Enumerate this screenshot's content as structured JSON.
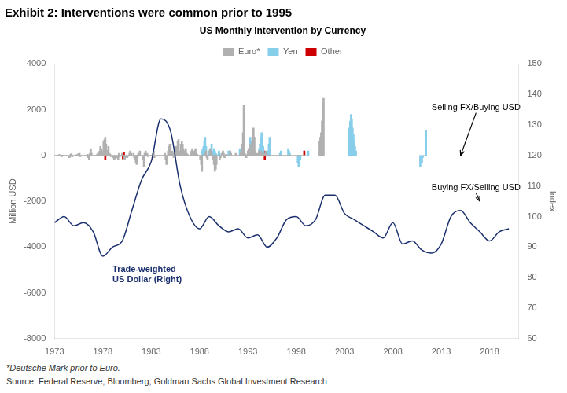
{
  "chart_data": {
    "type": "bar",
    "title": "Exhibit 2: Interventions were common prior to 1995",
    "subtitle": "US Monthly Intervention by Currency",
    "ylabel": "Million USD",
    "y2label": "Index",
    "xlim": [
      1973,
      2021
    ],
    "xticks": [
      1973,
      1978,
      1983,
      1988,
      1993,
      1998,
      2003,
      2008,
      2013,
      2018
    ],
    "ylim": [
      -8000,
      4000
    ],
    "yticks": [
      -8000,
      -6000,
      -4000,
      -2000,
      0,
      2000,
      4000
    ],
    "y2lim": [
      60,
      150
    ],
    "y2ticks": [
      60,
      70,
      80,
      90,
      100,
      110,
      120,
      130,
      140,
      150
    ],
    "grid": false,
    "legend": "top",
    "series": [
      {
        "name": "Euro*",
        "color": "#b0b0b0",
        "x": [
          1973.0,
          1973.08,
          1973.17,
          1973.25,
          1973.33,
          1973.42,
          1973.5,
          1973.58,
          1973.67,
          1973.75,
          1973.83,
          1973.92,
          1974.0,
          1974.08,
          1974.17,
          1974.25,
          1974.33,
          1974.42,
          1974.5,
          1974.58,
          1974.67,
          1974.75,
          1974.83,
          1974.92,
          1975.0,
          1975.08,
          1975.17,
          1975.25,
          1975.33,
          1975.42,
          1975.5,
          1975.58,
          1975.67,
          1975.75,
          1975.83,
          1975.92,
          1976.0,
          1976.08,
          1976.17,
          1976.25,
          1976.33,
          1976.42,
          1976.5,
          1976.58,
          1976.67,
          1976.75,
          1976.83,
          1976.92,
          1977.0,
          1977.08,
          1977.17,
          1977.25,
          1977.33,
          1977.42,
          1977.5,
          1977.58,
          1977.67,
          1977.75,
          1977.83,
          1977.92,
          1978.0,
          1978.08,
          1978.17,
          1978.25,
          1978.33,
          1978.42,
          1978.5,
          1978.58,
          1978.67,
          1978.75,
          1978.83,
          1978.92,
          1979.0,
          1979.08,
          1979.17,
          1979.25,
          1979.33,
          1979.42,
          1979.5,
          1979.58,
          1979.67,
          1979.75,
          1979.83,
          1979.92,
          1980.0,
          1980.08,
          1980.17,
          1980.25,
          1980.33,
          1980.42,
          1980.5,
          1980.58,
          1980.67,
          1980.75,
          1980.83,
          1980.92,
          1981.0,
          1981.08,
          1981.17,
          1981.25,
          1981.33,
          1981.42,
          1981.5,
          1981.58,
          1981.67,
          1981.75,
          1981.83,
          1981.92,
          1982.0,
          1982.08,
          1982.17,
          1982.25,
          1982.33,
          1982.42,
          1982.5,
          1982.58,
          1982.67,
          1982.75,
          1982.83,
          1982.92,
          1983.0,
          1983.08,
          1983.17,
          1983.25,
          1983.33,
          1983.42,
          1983.5,
          1983.58,
          1983.67,
          1983.75,
          1983.83,
          1983.92,
          1984.0,
          1984.08,
          1984.17,
          1984.25,
          1984.33,
          1984.42,
          1984.5,
          1984.58,
          1984.67,
          1984.75,
          1984.83,
          1984.92,
          1985.0,
          1985.08,
          1985.17,
          1985.25,
          1985.33,
          1985.42,
          1985.5,
          1985.58,
          1985.67,
          1985.75,
          1985.83,
          1985.92,
          1986.0,
          1986.08,
          1986.17,
          1986.25,
          1986.33,
          1986.42,
          1986.5,
          1986.58,
          1986.67,
          1986.75,
          1986.83,
          1986.92,
          1987.0,
          1987.08,
          1987.17,
          1987.25,
          1987.33,
          1987.42,
          1987.5,
          1987.58,
          1987.67,
          1987.75,
          1987.83,
          1987.92,
          1988.0,
          1988.08,
          1988.17,
          1988.25,
          1988.33,
          1988.42,
          1988.5,
          1988.58,
          1988.67,
          1988.75,
          1988.83,
          1988.92,
          1989.0,
          1989.08,
          1989.17,
          1989.25,
          1989.33,
          1989.42,
          1989.5,
          1989.58,
          1989.67,
          1989.75,
          1989.83,
          1989.92,
          1990.0,
          1990.08,
          1990.17,
          1990.25,
          1990.33,
          1990.42,
          1990.5,
          1990.58,
          1990.67,
          1990.75,
          1990.83,
          1990.92,
          1991.0,
          1991.08,
          1991.17,
          1991.25,
          1991.33,
          1991.42,
          1991.5,
          1991.58,
          1991.67,
          1991.75,
          1991.83,
          1991.92,
          1992.0,
          1992.08,
          1992.17,
          1992.25,
          1992.33,
          1992.42,
          1992.5,
          1992.58,
          1992.67,
          1992.75,
          1992.83,
          1992.92,
          1993.0,
          1993.08,
          1993.17,
          1993.25,
          1993.33,
          1993.42,
          1993.5,
          1993.58,
          1993.67,
          1993.75,
          1993.83,
          1993.92,
          1994.0,
          1994.08,
          1994.17,
          1994.25,
          1994.33,
          1994.42,
          1994.5,
          1994.58,
          1994.67,
          1994.75,
          1994.83,
          1994.92,
          1995.0,
          1995.08,
          1995.17,
          1995.25,
          1995.33,
          1995.42,
          1995.5,
          1995.58,
          1995.67,
          1995.75,
          1995.83,
          1995.92,
          1996.0,
          1996.08,
          1996.17,
          1996.25,
          1996.33,
          1996.42,
          1996.5,
          1996.58,
          1996.67,
          1996.75,
          1996.83,
          1996.92,
          1997.0,
          1997.08,
          1997.17,
          1997.25,
          1997.33,
          1997.42,
          1997.5,
          1997.58,
          1997.67,
          1997.75,
          1997.83,
          1997.92,
          1998.0,
          1998.08,
          1998.17,
          1998.25,
          1998.33,
          1998.42,
          1998.5,
          1998.58,
          1998.67,
          1998.75,
          1998.83,
          1998.92,
          2000.42,
          2000.5,
          2000.58,
          2000.67,
          2000.75,
          2000.83,
          2011.25
        ],
        "values": [
          0,
          0,
          0,
          0,
          20,
          -30,
          40,
          30,
          10,
          -50,
          20,
          10,
          0,
          0,
          0,
          0,
          0,
          0,
          -100,
          -80,
          50,
          80,
          -60,
          0,
          0,
          0,
          0,
          20,
          40,
          60,
          80,
          100,
          -50,
          -30,
          0,
          0,
          0,
          0,
          0,
          20,
          -30,
          50,
          -100,
          -200,
          100,
          300,
          100,
          0,
          0,
          0,
          0,
          0,
          20,
          50,
          100,
          150,
          200,
          400,
          300,
          100,
          200,
          600,
          700,
          800,
          500,
          100,
          200,
          400,
          100,
          50,
          -50,
          0,
          0,
          -100,
          -200,
          -150,
          -100,
          -50,
          -100,
          -200,
          100,
          -50,
          0,
          0,
          100,
          0,
          -100,
          -200,
          -100,
          -50,
          -100,
          -50,
          0,
          100,
          200,
          100,
          0,
          0,
          100,
          -100,
          -200,
          -300,
          -400,
          -100,
          100,
          0,
          200,
          0,
          0,
          0,
          -200,
          -500,
          100,
          200,
          0,
          100,
          -50,
          0,
          0,
          0,
          0,
          0,
          100,
          200,
          -100,
          0,
          0,
          0,
          0,
          0,
          0,
          0,
          0,
          0,
          0,
          0,
          0,
          100,
          -200,
          -400,
          0,
          200,
          400,
          500,
          500,
          100,
          200,
          100,
          -100,
          200,
          300,
          400,
          200,
          600,
          700,
          100,
          200,
          500,
          600,
          500,
          300,
          100,
          200,
          300,
          100,
          50,
          0,
          0,
          0,
          100,
          200,
          300,
          100,
          200,
          100,
          300,
          100,
          50,
          0,
          0,
          0,
          -200,
          -400,
          -700,
          0,
          0,
          0,
          100,
          200,
          -100,
          -200,
          0,
          0,
          300,
          200,
          100,
          0,
          -200,
          -400,
          -700,
          -600,
          -400,
          0,
          0,
          0,
          -200,
          -100,
          0,
          100,
          200,
          100,
          -100,
          0,
          50,
          0,
          0,
          0,
          0,
          200,
          100,
          0,
          0,
          0,
          0,
          0,
          100,
          0,
          0,
          0,
          0,
          0,
          100,
          200,
          500,
          1000,
          2200,
          100,
          50,
          -100,
          0,
          200,
          300,
          500,
          300,
          100,
          600,
          1000,
          1200,
          800,
          200,
          0,
          100,
          0,
          100,
          200,
          0,
          200,
          100,
          0,
          100,
          0,
          100,
          200,
          100,
          0,
          0,
          0,
          0,
          0,
          0,
          0,
          0,
          0,
          0,
          0,
          0,
          0,
          0,
          0,
          0,
          0,
          0,
          0,
          0,
          0,
          0,
          0,
          0,
          0,
          0,
          0,
          0,
          0,
          0,
          0,
          0,
          0,
          0,
          0,
          0,
          0,
          0,
          0,
          0,
          0,
          0,
          0,
          0,
          0,
          0,
          0,
          0,
          600,
          800,
          1000,
          1500,
          2300,
          2500,
          0
        ]
      },
      {
        "name": "Yen",
        "color": "#87ceeb",
        "x": [
          1988.25,
          1988.33,
          1988.42,
          1988.5,
          1988.58,
          1988.67,
          1989.0,
          1989.08,
          1989.17,
          1989.25,
          1989.33,
          1989.42,
          1989.5,
          1989.58,
          1989.67,
          1989.75,
          1990.0,
          1990.08,
          1991.0,
          1991.17,
          1992.17,
          1992.25,
          1992.42,
          1993.17,
          1993.25,
          1993.33,
          1993.42,
          1994.17,
          1994.25,
          1994.33,
          1994.42,
          1994.5,
          1994.58,
          1995.0,
          1995.08,
          1995.17,
          1995.25,
          1996.33,
          1996.42,
          1997.17,
          1997.25,
          1997.33,
          1998.17,
          1998.25,
          1998.33,
          1998.42,
          1999.17,
          1999.25,
          2003.42,
          2003.5,
          2003.58,
          2003.67,
          2003.75,
          2003.83,
          2003.92,
          2004.0,
          2004.08,
          2004.17,
          2010.83,
          2011.0,
          2011.08,
          2011.42
        ],
        "values": [
          200,
          300,
          400,
          600,
          800,
          400,
          200,
          100,
          300,
          500,
          200,
          100,
          300,
          200,
          100,
          50,
          200,
          100,
          200,
          100,
          300,
          200,
          100,
          500,
          800,
          600,
          400,
          300,
          500,
          800,
          1000,
          700,
          400,
          100,
          200,
          500,
          800,
          100,
          200,
          300,
          200,
          100,
          -300,
          -500,
          -400,
          -200,
          100,
          200,
          800,
          1200,
          1500,
          1800,
          1600,
          1200,
          900,
          600,
          400,
          200,
          -500,
          -300,
          -100,
          1100
        ]
      },
      {
        "name": "Other",
        "color": "#cc0000",
        "x": [
          1978.25,
          1978.42,
          1980.08,
          1980.17,
          1981.5,
          1994.67,
          1994.75,
          1998.83
        ],
        "values": [
          -200,
          200,
          -150,
          150,
          -100,
          200,
          -200,
          200
        ]
      },
      {
        "type": "line",
        "axis": "y2",
        "color": "#1a2f6e",
        "x": [
          1973,
          1974,
          1975,
          1976,
          1977,
          1978,
          1979,
          1980,
          1981,
          1982,
          1983,
          1984,
          1985,
          1986,
          1987,
          1988,
          1989,
          1990,
          1991,
          1992,
          1993,
          1994,
          1995,
          1996,
          1997,
          1998,
          1999,
          2000,
          2001,
          2002,
          2003,
          2004,
          2005,
          2006,
          2007,
          2008,
          2009,
          2010,
          2011,
          2012,
          2013,
          2014,
          2015,
          2016,
          2017,
          2018,
          2019,
          2020
        ],
        "values": [
          98,
          100,
          97,
          98,
          95,
          87,
          90,
          92,
          102,
          112,
          118,
          132,
          128,
          110,
          100,
          96,
          100,
          97,
          95,
          96,
          93,
          94,
          90,
          93,
          99,
          100,
          97,
          99,
          107,
          107,
          101,
          99,
          97,
          95,
          93,
          98,
          91,
          92,
          89,
          88,
          91,
          100,
          102,
          98,
          95,
          92,
          95,
          96
        ]
      }
    ],
    "annotations": [
      {
        "text": "Selling FX/Buying USD",
        "x": 2012,
        "y": 2000,
        "arrow_to": [
          2015,
          0
        ]
      },
      {
        "text": "Buying FX/Selling USD",
        "x": 2012,
        "y": -1500,
        "arrow_to": [
          2017,
          -2000
        ]
      },
      {
        "text": "Trade-weighted\nUS Dollar (Right)",
        "x": 1979,
        "y": -5200,
        "color": "#1a2f6e"
      }
    ],
    "footnotes": [
      "*Deutsche Mark prior to Euro.",
      "Source: Federal Reserve, Bloomberg, Goldman Sachs Global Investment Research"
    ]
  }
}
